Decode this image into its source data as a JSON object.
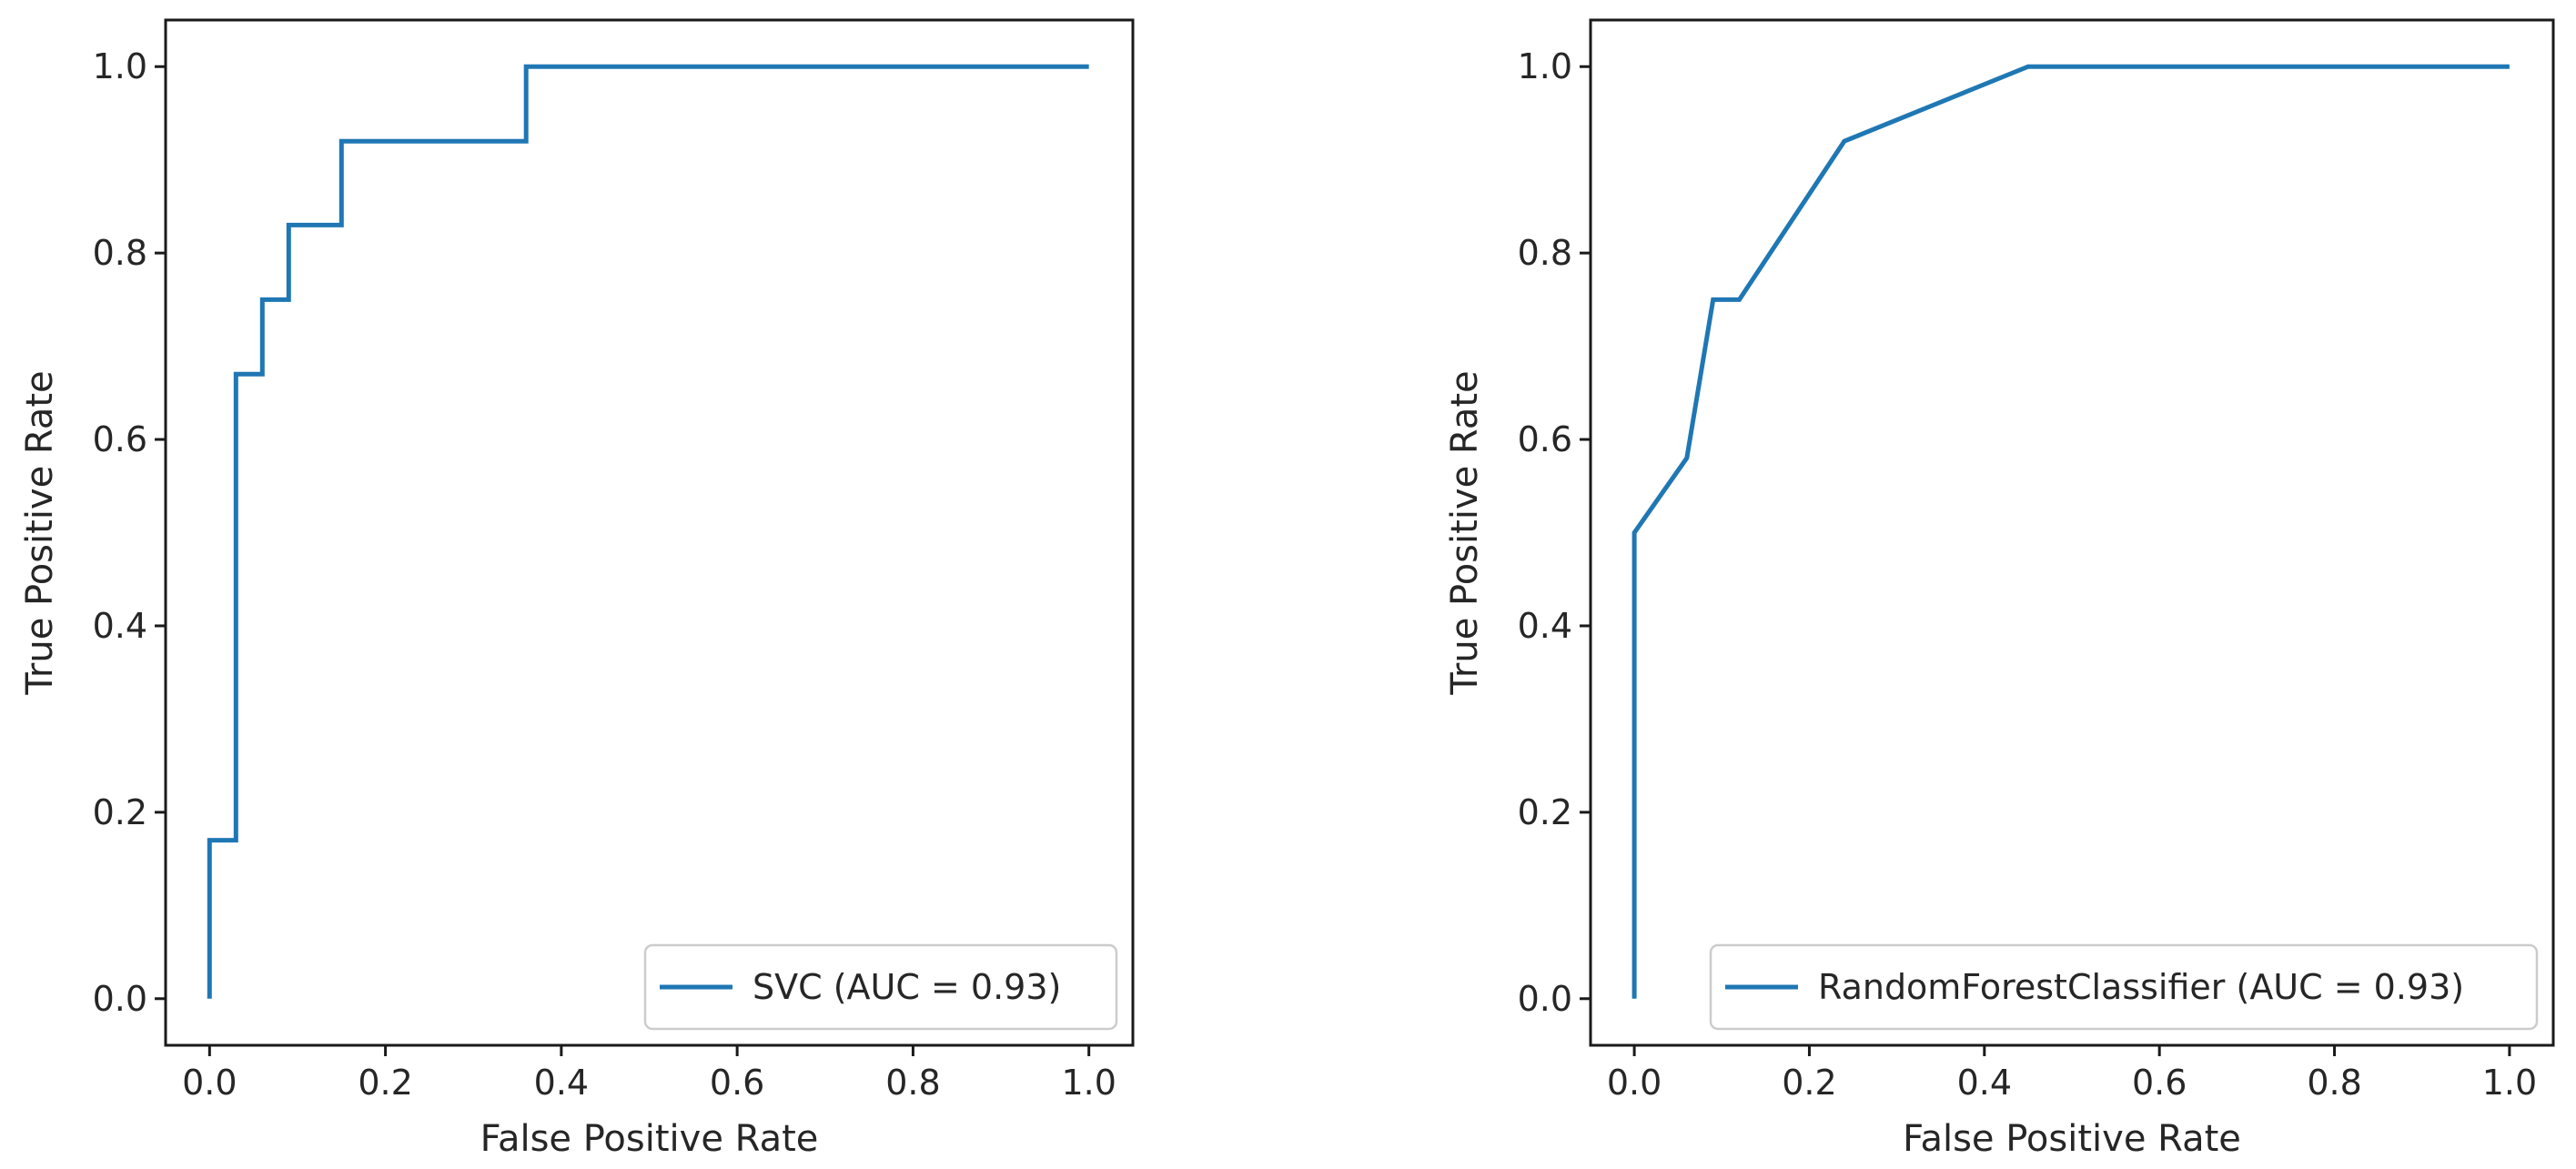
{
  "chart_data": [
    {
      "type": "line",
      "xlabel": "False Positive Rate",
      "ylabel": "True Positive Rate",
      "xlim": [
        -0.05,
        1.05
      ],
      "ylim": [
        -0.05,
        1.05
      ],
      "xticks": [
        "0.0",
        "0.2",
        "0.4",
        "0.6",
        "0.8",
        "1.0"
      ],
      "yticks": [
        "0.0",
        "0.2",
        "0.4",
        "0.6",
        "0.8",
        "1.0"
      ],
      "grid": false,
      "legend_position": "lower-right",
      "series": [
        {
          "name": "SVC (AUC = 0.93)",
          "color": "#1f77b4",
          "x": [
            0.0,
            0.0,
            0.03,
            0.03,
            0.06,
            0.06,
            0.09,
            0.09,
            0.15,
            0.15,
            0.36,
            0.36,
            1.0
          ],
          "y": [
            0.0,
            0.17,
            0.17,
            0.67,
            0.67,
            0.75,
            0.75,
            0.83,
            0.83,
            0.92,
            0.92,
            1.0,
            1.0
          ]
        }
      ]
    },
    {
      "type": "line",
      "xlabel": "False Positive Rate",
      "ylabel": "True Positive Rate",
      "xlim": [
        -0.05,
        1.05
      ],
      "ylim": [
        -0.05,
        1.05
      ],
      "xticks": [
        "0.0",
        "0.2",
        "0.4",
        "0.6",
        "0.8",
        "1.0"
      ],
      "yticks": [
        "0.0",
        "0.2",
        "0.4",
        "0.6",
        "0.8",
        "1.0"
      ],
      "grid": false,
      "legend_position": "lower-right",
      "series": [
        {
          "name": "RandomForestClassifier (AUC = 0.93)",
          "color": "#1f77b4",
          "x": [
            0.0,
            0.0,
            0.06,
            0.09,
            0.12,
            0.24,
            0.45,
            1.0
          ],
          "y": [
            0.0,
            0.5,
            0.58,
            0.75,
            0.75,
            0.92,
            1.0,
            1.0
          ]
        }
      ]
    }
  ]
}
